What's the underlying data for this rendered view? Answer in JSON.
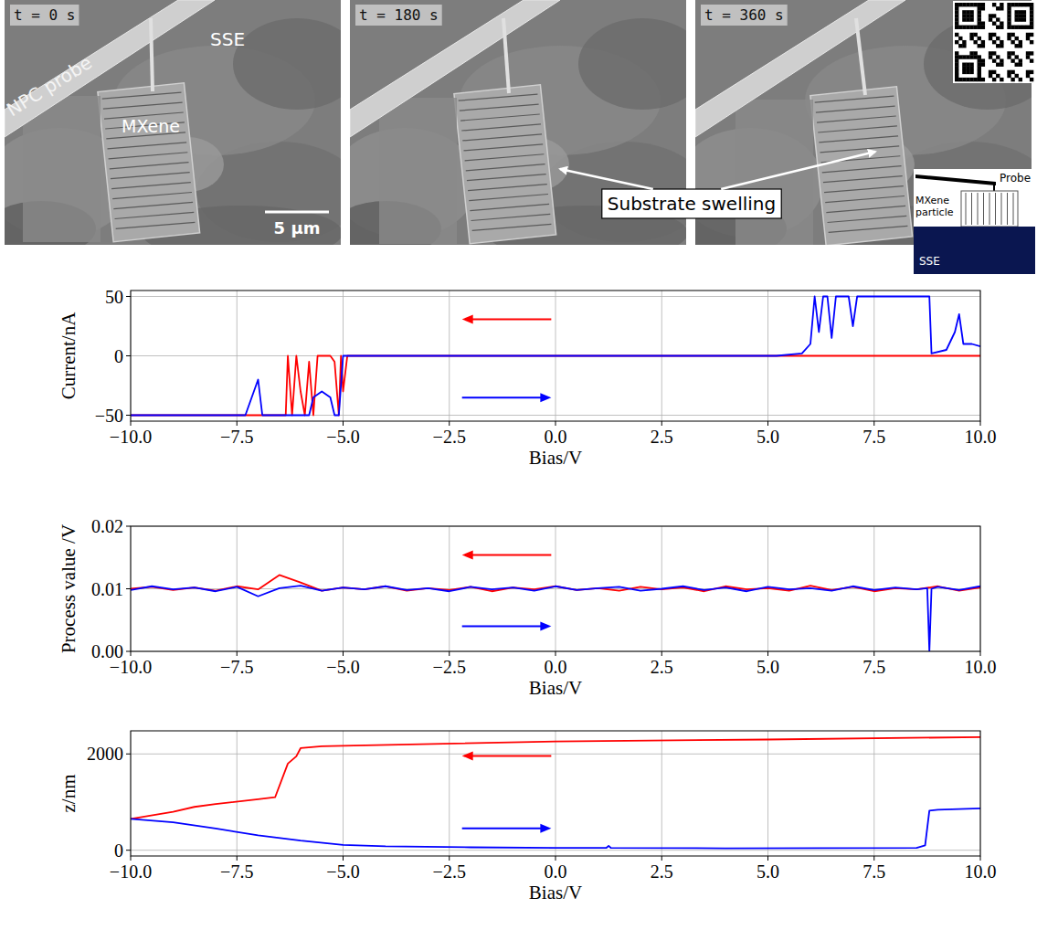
{
  "images": {
    "panels": [
      {
        "time": "t = 0 s",
        "labels": [
          "NPC probe",
          "MXene",
          "SSE"
        ],
        "scale": "5 µm"
      },
      {
        "time": "t = 180 s"
      },
      {
        "time": "t = 360 s"
      }
    ],
    "annotation": "Substrate swelling",
    "schematic": {
      "probe": "Probe",
      "particle": "MXene particle",
      "substrate": "SSE"
    }
  },
  "chart_data": [
    {
      "type": "line",
      "xlabel": "Bias/V",
      "ylabel": "Current/nA",
      "grid": true,
      "xlim": [
        -10,
        10
      ],
      "xticks": [
        {
          "value": -10,
          "label": "−10.0"
        },
        {
          "value": -7.5,
          "label": "−7.5"
        },
        {
          "value": -5,
          "label": "−5.0"
        },
        {
          "value": -2.5,
          "label": "−2.5"
        },
        {
          "value": 0,
          "label": "0.0"
        },
        {
          "value": 2.5,
          "label": "2.5"
        },
        {
          "value": 5,
          "label": "5.0"
        },
        {
          "value": 7.5,
          "label": "7.5"
        },
        {
          "value": 10,
          "label": "10.0"
        }
      ],
      "ylim": [
        -55,
        55
      ],
      "yticks": [
        {
          "value": -50,
          "label": "−50"
        },
        0,
        50
      ],
      "series": [
        {
          "color": "#ff0000",
          "x": [
            10,
            -4.9,
            -5.0,
            -5.05,
            -5.1,
            -5.2,
            -5.3,
            -5.6,
            -5.7,
            -5.8,
            -5.9,
            -6.0,
            -6.1,
            -6.2,
            -6.3,
            -6.35,
            -10
          ],
          "values": [
            0,
            0,
            -30,
            0,
            -50,
            -5,
            0,
            0,
            -50,
            -5,
            -50,
            -30,
            0,
            -50,
            0,
            -50,
            -50
          ]
        },
        {
          "color": "#0000ff",
          "x": [
            -10,
            -7.3,
            -7.2,
            -7.0,
            -6.9,
            -6.8,
            -5.8,
            -5.7,
            -5.5,
            -5.3,
            -5.2,
            -5.1,
            -5.0,
            5.2,
            5.8,
            6.0,
            6.1,
            6.2,
            6.3,
            6.4,
            6.5,
            6.6,
            6.7,
            6.9,
            7.0,
            7.1,
            8.8,
            8.85,
            9.2,
            9.4,
            9.5,
            9.6,
            9.8,
            10
          ],
          "values": [
            -50,
            -50,
            -40,
            -20,
            -50,
            -50,
            -50,
            -35,
            -30,
            -35,
            -50,
            -50,
            0,
            0,
            2,
            10,
            50,
            20,
            50,
            50,
            15,
            50,
            50,
            50,
            25,
            50,
            50,
            2,
            5,
            20,
            35,
            10,
            10,
            8
          ]
        }
      ]
    },
    {
      "type": "line",
      "xlabel": "Bias/V",
      "ylabel": "Process value /V",
      "grid": true,
      "xlim": [
        -10,
        10
      ],
      "xticks": [
        {
          "value": -10,
          "label": "−10.0"
        },
        {
          "value": -7.5,
          "label": "−7.5"
        },
        {
          "value": -5,
          "label": "−5.0"
        },
        {
          "value": -2.5,
          "label": "−2.5"
        },
        {
          "value": 0,
          "label": "0.0"
        },
        {
          "value": 2.5,
          "label": "2.5"
        },
        {
          "value": 5,
          "label": "5.0"
        },
        {
          "value": 7.5,
          "label": "7.5"
        },
        {
          "value": 10,
          "label": "10.0"
        }
      ],
      "ylim": [
        0,
        0.02
      ],
      "yticks": [
        {
          "value": 0,
          "label": "0.00"
        },
        {
          "value": 0.01,
          "label": "0.01"
        },
        {
          "value": 0.02,
          "label": "0.02"
        }
      ],
      "series": [
        {
          "color": "#ff0000",
          "x": [
            10,
            9.5,
            9,
            8.5,
            8,
            7.5,
            7,
            6.5,
            6,
            5.5,
            5,
            4.5,
            4,
            3.5,
            3,
            2.5,
            2,
            1.5,
            1,
            0.5,
            0,
            -0.5,
            -1,
            -1.5,
            -2,
            -2.5,
            -3,
            -3.5,
            -4,
            -4.5,
            -5,
            -5.5,
            -6,
            -6.5,
            -7,
            -7.5,
            -8,
            -8.5,
            -9,
            -9.5,
            -10
          ],
          "values": [
            0.0102,
            0.0097,
            0.0104,
            0.0099,
            0.0101,
            0.0096,
            0.0103,
            0.0098,
            0.0105,
            0.0097,
            0.0101,
            0.0099,
            0.0104,
            0.0096,
            0.0102,
            0.0099,
            0.0103,
            0.0097,
            0.0101,
            0.0098,
            0.0104,
            0.0099,
            0.0102,
            0.0096,
            0.0103,
            0.0098,
            0.0101,
            0.0097,
            0.0104,
            0.0099,
            0.0102,
            0.0097,
            0.011,
            0.0122,
            0.0099,
            0.0104,
            0.0097,
            0.0102,
            0.0098,
            0.0103,
            0.01
          ]
        },
        {
          "color": "#0000ff",
          "x": [
            -10,
            -9.5,
            -9,
            -8.5,
            -8,
            -7.5,
            -7,
            -6.5,
            -6,
            -5.5,
            -5,
            -4.5,
            -4,
            -3.5,
            -3,
            -2.5,
            -2,
            -1.5,
            -1,
            -0.5,
            0,
            0.5,
            1,
            1.5,
            2,
            2.5,
            3,
            3.5,
            4,
            4.5,
            5,
            5.5,
            6,
            6.5,
            7,
            7.5,
            8,
            8.5,
            8.75,
            8.8,
            8.85,
            9,
            9.5,
            10
          ],
          "values": [
            0.0098,
            0.0104,
            0.0099,
            0.0102,
            0.0096,
            0.0103,
            0.0088,
            0.0101,
            0.0105,
            0.0097,
            0.0102,
            0.0099,
            0.0104,
            0.0098,
            0.0101,
            0.0096,
            0.0103,
            0.0099,
            0.0102,
            0.0097,
            0.0104,
            0.0098,
            0.0101,
            0.0103,
            0.0097,
            0.01,
            0.0104,
            0.0098,
            0.0102,
            0.0096,
            0.0103,
            0.0099,
            0.0101,
            0.0097,
            0.0104,
            0.0098,
            0.0102,
            0.0099,
            0.0101,
            0.0,
            0.01,
            0.0103,
            0.0098,
            0.0104
          ]
        }
      ]
    },
    {
      "type": "line",
      "xlabel": "Bias/V",
      "ylabel": "z/nm",
      "grid": true,
      "xlim": [
        -10,
        10
      ],
      "xticks": [
        {
          "value": -10,
          "label": "−10.0"
        },
        {
          "value": -7.5,
          "label": "−7.5"
        },
        {
          "value": -5,
          "label": "−5.0"
        },
        {
          "value": -2.5,
          "label": "−2.5"
        },
        {
          "value": 0,
          "label": "0.0"
        },
        {
          "value": 2.5,
          "label": "2.5"
        },
        {
          "value": 5,
          "label": "5.0"
        },
        {
          "value": 7.5,
          "label": "7.5"
        },
        {
          "value": 10,
          "label": "10.0"
        }
      ],
      "ylim": [
        -120,
        2480
      ],
      "yticks": [
        0,
        2000
      ],
      "series": [
        {
          "color": "#ff0000",
          "x": [
            10,
            5,
            0,
            -5,
            -5.5,
            -6,
            -6.1,
            -6.3,
            -6.6,
            -7,
            -8,
            -8.5,
            -9,
            -10
          ],
          "values": [
            2350,
            2300,
            2260,
            2170,
            2160,
            2120,
            1950,
            1800,
            1100,
            1060,
            960,
            900,
            800,
            650
          ]
        },
        {
          "color": "#0000ff",
          "x": [
            -10,
            -9,
            -8,
            -7,
            -6,
            -5,
            -4,
            -2,
            0,
            1.2,
            1.25,
            1.3,
            4,
            8.5,
            8.7,
            8.8,
            9,
            10
          ],
          "values": [
            650,
            580,
            450,
            310,
            200,
            110,
            80,
            60,
            50,
            50,
            90,
            50,
            40,
            50,
            100,
            820,
            840,
            870
          ]
        }
      ]
    }
  ]
}
